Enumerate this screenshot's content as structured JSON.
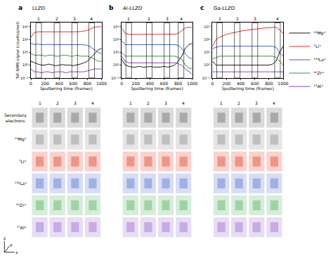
{
  "chart_data": [
    {
      "type": "line",
      "panel": "a",
      "title": "LLZO",
      "x_label": "Sputtering time (frames)",
      "y_label": "ToF-SIMS signal (counts/pixel)",
      "log": "y",
      "grid": false,
      "xlim": [
        0,
        1000
      ],
      "xticks": [
        0,
        200,
        400,
        600,
        800,
        1000
      ],
      "ylim": [
        0.1,
        2000
      ],
      "yticks": [
        {
          "value": 0.1,
          "label": "10⁻¹"
        },
        {
          "value": 1,
          "label": "10⁰"
        },
        {
          "value": 10,
          "label": "10¹"
        },
        {
          "value": 100,
          "label": "10²"
        },
        {
          "value": 1000,
          "label": "10³"
        }
      ],
      "x": [
        0,
        50,
        100,
        150,
        200,
        250,
        300,
        350,
        400,
        450,
        500,
        550,
        600,
        650,
        700,
        750,
        800,
        850,
        900,
        950,
        1000
      ],
      "series": [
        {
          "name": "²⁴Mg⁺",
          "color": "#000000",
          "values": [
            2,
            1.5,
            1.2,
            1,
            1,
            1.2,
            1,
            0.9,
            1,
            1.1,
            1,
            1,
            0.9,
            1,
            1.2,
            1.5,
            2,
            4,
            8,
            15,
            20
          ]
        },
        {
          "name": "⁷Li⁺",
          "color": "#e41a1c",
          "values": [
            150,
            350,
            400,
            400,
            380,
            400,
            400,
            390,
            400,
            400,
            400,
            410,
            400,
            400,
            420,
            450,
            500,
            700,
            900,
            1000,
            1000
          ]
        },
        {
          "name": "¹³⁹La⁺",
          "color": "#2b4fc7",
          "values": [
            50,
            40,
            45,
            40,
            40,
            42,
            40,
            40,
            40,
            40,
            42,
            40,
            40,
            40,
            40,
            38,
            35,
            25,
            15,
            10,
            8
          ]
        },
        {
          "name": "⁹⁰Zr⁺",
          "color": "#1a8a2e",
          "values": [
            8,
            6,
            6,
            6,
            5,
            6,
            6,
            5,
            5,
            6,
            6,
            5,
            5,
            6,
            5,
            5,
            5,
            4,
            3,
            2,
            2
          ]
        },
        {
          "name": "²⁷Al⁺",
          "color": "#7b2fbe",
          "values": [
            0.5,
            0.3,
            0.3,
            0.25,
            0.3,
            0.3,
            0.25,
            0.3,
            0.3,
            0.3,
            0.25,
            0.3,
            0.3,
            0.3,
            0.3,
            0.3,
            0.35,
            0.4,
            0.5,
            0.5,
            0.5
          ]
        }
      ],
      "regions": [
        {
          "label": "1",
          "x": [
            70,
            150
          ]
        },
        {
          "label": "2",
          "x": [
            330,
            410
          ]
        },
        {
          "label": "3",
          "x": [
            580,
            660
          ]
        },
        {
          "label": "4",
          "x": [
            820,
            900
          ]
        }
      ]
    },
    {
      "type": "line",
      "panel": "b",
      "title": "Al-LLZO",
      "x_label": "Sputtering time (frames)",
      "log": "y",
      "grid": false,
      "xlim": [
        0,
        1000
      ],
      "xticks": [
        0,
        200,
        400,
        600,
        800,
        1000
      ],
      "ylim": [
        0.1,
        2000
      ],
      "yticks": [
        {
          "value": 0.1,
          "label": "10⁻¹"
        },
        {
          "value": 1,
          "label": "10⁰"
        },
        {
          "value": 10,
          "label": "10¹"
        },
        {
          "value": 100,
          "label": "10²"
        },
        {
          "value": 1000,
          "label": "10³"
        }
      ],
      "x": [
        0,
        50,
        100,
        150,
        200,
        250,
        300,
        350,
        400,
        450,
        500,
        550,
        600,
        650,
        700,
        750,
        800,
        850,
        900,
        950,
        1000
      ],
      "series": [
        {
          "name": "²⁴Mg⁺",
          "color": "#000000",
          "values": [
            3,
            1,
            0.8,
            0.7,
            0.7,
            0.8,
            0.7,
            0.7,
            0.8,
            0.7,
            0.7,
            0.7,
            0.8,
            0.7,
            0.8,
            1,
            2,
            5,
            20,
            40,
            50
          ]
        },
        {
          "name": "⁷Li⁺",
          "color": "#e41a1c",
          "values": [
            800,
            300,
            250,
            250,
            250,
            250,
            250,
            250,
            250,
            250,
            250,
            250,
            250,
            250,
            250,
            260,
            300,
            500,
            800,
            900,
            900
          ]
        },
        {
          "name": "¹³⁹La⁺",
          "color": "#2b4fc7",
          "values": [
            80,
            40,
            40,
            40,
            40,
            40,
            40,
            40,
            40,
            40,
            40,
            40,
            40,
            40,
            40,
            40,
            35,
            20,
            8,
            4,
            3
          ]
        },
        {
          "name": "⁹⁰Zr⁺",
          "color": "#1a8a2e",
          "values": [
            10,
            5,
            5,
            5,
            5,
            5,
            5,
            5,
            5,
            5,
            5,
            5,
            5,
            5,
            5,
            5,
            4,
            3,
            1,
            0.6,
            0.5
          ]
        },
        {
          "name": "²⁷Al⁺",
          "color": "#7b2fbe",
          "values": [
            5,
            2,
            1.5,
            1.5,
            1.5,
            1.5,
            1.5,
            1.5,
            1.5,
            1.5,
            1.5,
            1.5,
            1.5,
            1.5,
            1.5,
            1.5,
            1.3,
            1,
            0.5,
            0.3,
            0.2
          ]
        }
      ],
      "regions": [
        {
          "label": "1",
          "x": [
            60,
            140
          ]
        },
        {
          "label": "2",
          "x": [
            350,
            430
          ]
        },
        {
          "label": "3",
          "x": [
            600,
            680
          ]
        },
        {
          "label": "4",
          "x": [
            800,
            880
          ]
        }
      ]
    },
    {
      "type": "line",
      "panel": "c",
      "title": "Ga-LLZO",
      "x_label": "Sputtering time (frames)",
      "log": "y",
      "grid": false,
      "legend": "right",
      "xlim": [
        0,
        1000
      ],
      "xticks": [
        0,
        200,
        400,
        600,
        800,
        1000
      ],
      "ylim": [
        0.1,
        2000
      ],
      "yticks": [
        {
          "value": 0.1,
          "label": "10⁻¹"
        },
        {
          "value": 1,
          "label": "10⁰"
        },
        {
          "value": 10,
          "label": "10¹"
        },
        {
          "value": 100,
          "label": "10²"
        },
        {
          "value": 1000,
          "label": "10³"
        }
      ],
      "x": [
        0,
        50,
        100,
        150,
        200,
        250,
        300,
        350,
        400,
        450,
        500,
        550,
        600,
        650,
        700,
        750,
        800,
        850,
        900,
        950,
        1000
      ],
      "series": [
        {
          "name": "²⁴Mg⁺",
          "color": "#000000",
          "values": [
            2,
            1,
            1,
            1,
            1,
            1,
            1,
            1,
            1,
            1,
            1,
            1,
            1,
            1,
            1,
            1,
            1,
            1.2,
            2,
            10,
            30
          ]
        },
        {
          "name": "⁷Li⁺",
          "color": "#e41a1c",
          "values": [
            30,
            100,
            150,
            200,
            250,
            300,
            350,
            400,
            450,
            500,
            550,
            600,
            650,
            700,
            750,
            800,
            850,
            900,
            900,
            600,
            300
          ]
        },
        {
          "name": "¹³⁹La⁺",
          "color": "#2b4fc7",
          "values": [
            20,
            25,
            30,
            30,
            30,
            30,
            30,
            30,
            30,
            30,
            30,
            30,
            30,
            30,
            30,
            30,
            30,
            30,
            25,
            10,
            5
          ]
        },
        {
          "name": "⁹⁰Zr⁺",
          "color": "#1a8a2e",
          "values": [
            3,
            4,
            5,
            5,
            5,
            5,
            5,
            5,
            5,
            5,
            5,
            5,
            5,
            5,
            5,
            5,
            5,
            5,
            4,
            2,
            1
          ]
        },
        {
          "name": "²⁷Al⁺",
          "color": "#7b2fbe",
          "values": [
            0.3,
            0.3,
            0.3,
            0.3,
            0.3,
            0.3,
            0.3,
            0.3,
            0.3,
            0.3,
            0.3,
            0.3,
            0.3,
            0.3,
            0.3,
            0.3,
            0.3,
            0.3,
            0.3,
            0.3,
            0.3
          ]
        }
      ],
      "regions": [
        {
          "label": "1",
          "x": [
            60,
            140
          ]
        },
        {
          "label": "2",
          "x": [
            310,
            390
          ]
        },
        {
          "label": "3",
          "x": [
            560,
            640
          ]
        },
        {
          "label": "4",
          "x": [
            880,
            960
          ]
        }
      ]
    }
  ],
  "image_columns": [
    "1",
    "2",
    "3",
    "4"
  ],
  "image_rows": [
    {
      "label": "Secondary electrons",
      "color": "#7f7f7f"
    },
    {
      "label": "²⁴Mg⁺",
      "color": "#a0a0a0"
    },
    {
      "label": "⁷Li⁺",
      "color": "#e8604c"
    },
    {
      "label": "¹³⁹La⁺",
      "color": "#6f8ad8"
    },
    {
      "label": "⁹⁰Zr⁺",
      "color": "#6fc07a"
    },
    {
      "label": "²⁷Al⁺",
      "color": "#a984d8"
    }
  ],
  "axes_labels": [
    "x",
    "y",
    "z"
  ]
}
